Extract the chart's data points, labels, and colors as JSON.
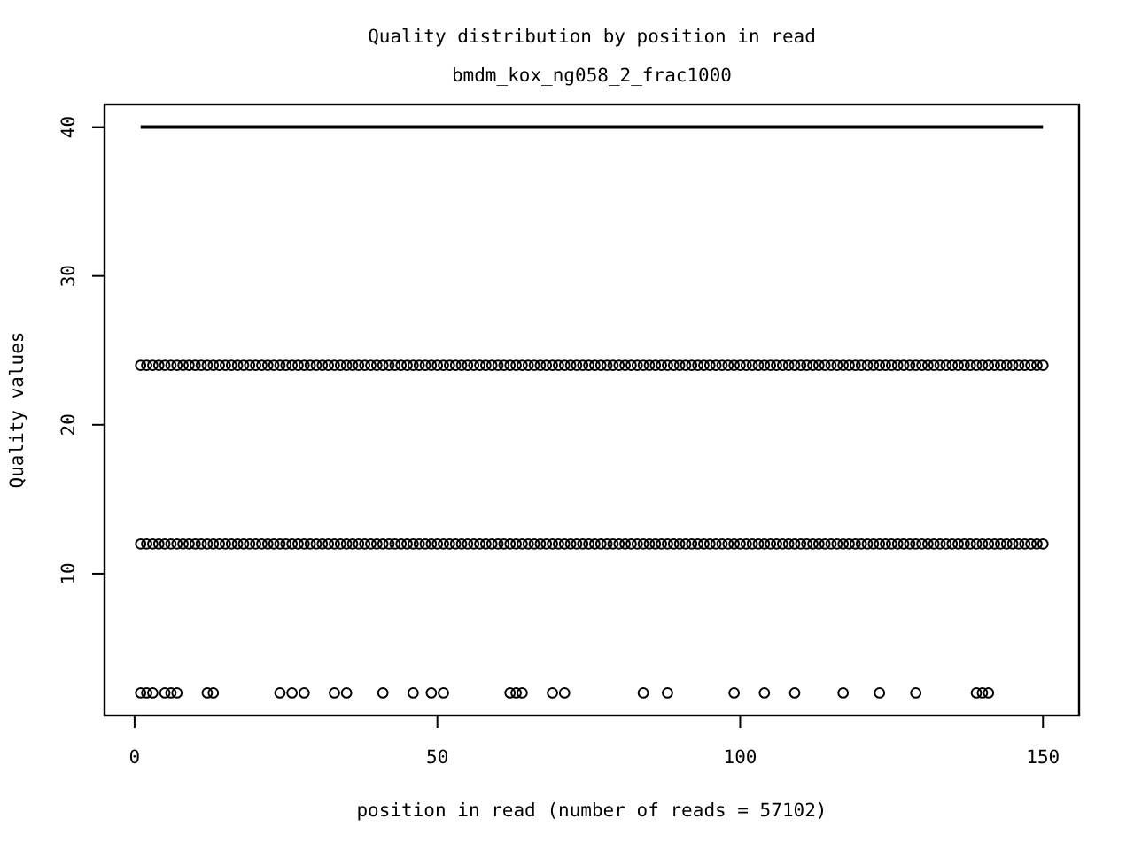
{
  "chart_data": {
    "type": "scatter",
    "title": "Quality distribution by position in read",
    "subtitle": "bmdm_kox_ng058_2_frac1000",
    "xlabel": "position in read (number of reads = 57102)",
    "ylabel": "Quality values",
    "xlim": [
      -4.96,
      155.96
    ],
    "xticks": [
      0,
      50,
      100,
      150
    ],
    "ylim": [
      0.48,
      41.52
    ],
    "yticks": [
      10,
      20,
      30,
      40
    ],
    "marker": "circle",
    "series": [
      {
        "type": "line",
        "marker": "none",
        "color": "#000000",
        "x": [
          1,
          150
        ],
        "values": [
          40,
          40
        ]
      },
      {
        "color": "#000000",
        "x": [
          1,
          2,
          3,
          4,
          5,
          6,
          7,
          8,
          9,
          10,
          11,
          12,
          13,
          14,
          15,
          16,
          17,
          18,
          19,
          20,
          21,
          22,
          23,
          24,
          25,
          26,
          27,
          28,
          29,
          30,
          31,
          32,
          33,
          34,
          35,
          36,
          37,
          38,
          39,
          40,
          41,
          42,
          43,
          44,
          45,
          46,
          47,
          48,
          49,
          50,
          51,
          52,
          53,
          54,
          55,
          56,
          57,
          58,
          59,
          60,
          61,
          62,
          63,
          64,
          65,
          66,
          67,
          68,
          69,
          70,
          71,
          72,
          73,
          74,
          75,
          76,
          77,
          78,
          79,
          80,
          81,
          82,
          83,
          84,
          85,
          86,
          87,
          88,
          89,
          90,
          91,
          92,
          93,
          94,
          95,
          96,
          97,
          98,
          99,
          100,
          101,
          102,
          103,
          104,
          105,
          106,
          107,
          108,
          109,
          110,
          111,
          112,
          113,
          114,
          115,
          116,
          117,
          118,
          119,
          120,
          121,
          122,
          123,
          124,
          125,
          126,
          127,
          128,
          129,
          130,
          131,
          132,
          133,
          134,
          135,
          136,
          137,
          138,
          139,
          140,
          141,
          142,
          143,
          144,
          145,
          146,
          147,
          148,
          149,
          150
        ],
        "values": [
          24,
          24,
          24,
          24,
          24,
          24,
          24,
          24,
          24,
          24,
          24,
          24,
          24,
          24,
          24,
          24,
          24,
          24,
          24,
          24,
          24,
          24,
          24,
          24,
          24,
          24,
          24,
          24,
          24,
          24,
          24,
          24,
          24,
          24,
          24,
          24,
          24,
          24,
          24,
          24,
          24,
          24,
          24,
          24,
          24,
          24,
          24,
          24,
          24,
          24,
          24,
          24,
          24,
          24,
          24,
          24,
          24,
          24,
          24,
          24,
          24,
          24,
          24,
          24,
          24,
          24,
          24,
          24,
          24,
          24,
          24,
          24,
          24,
          24,
          24,
          24,
          24,
          24,
          24,
          24,
          24,
          24,
          24,
          24,
          24,
          24,
          24,
          24,
          24,
          24,
          24,
          24,
          24,
          24,
          24,
          24,
          24,
          24,
          24,
          24,
          24,
          24,
          24,
          24,
          24,
          24,
          24,
          24,
          24,
          24,
          24,
          24,
          24,
          24,
          24,
          24,
          24,
          24,
          24,
          24,
          24,
          24,
          24,
          24,
          24,
          24,
          24,
          24,
          24,
          24,
          24,
          24,
          24,
          24,
          24,
          24,
          24,
          24,
          24,
          24,
          24,
          24,
          24,
          24,
          24,
          24,
          24,
          24,
          24,
          24
        ]
      },
      {
        "color": "#000000",
        "x": [
          1,
          2,
          3,
          4,
          5,
          6,
          7,
          8,
          9,
          10,
          11,
          12,
          13,
          14,
          15,
          16,
          17,
          18,
          19,
          20,
          21,
          22,
          23,
          24,
          25,
          26,
          27,
          28,
          29,
          30,
          31,
          32,
          33,
          34,
          35,
          36,
          37,
          38,
          39,
          40,
          41,
          42,
          43,
          44,
          45,
          46,
          47,
          48,
          49,
          50,
          51,
          52,
          53,
          54,
          55,
          56,
          57,
          58,
          59,
          60,
          61,
          62,
          63,
          64,
          65,
          66,
          67,
          68,
          69,
          70,
          71,
          72,
          73,
          74,
          75,
          76,
          77,
          78,
          79,
          80,
          81,
          82,
          83,
          84,
          85,
          86,
          87,
          88,
          89,
          90,
          91,
          92,
          93,
          94,
          95,
          96,
          97,
          98,
          99,
          100,
          101,
          102,
          103,
          104,
          105,
          106,
          107,
          108,
          109,
          110,
          111,
          112,
          113,
          114,
          115,
          116,
          117,
          118,
          119,
          120,
          121,
          122,
          123,
          124,
          125,
          126,
          127,
          128,
          129,
          130,
          131,
          132,
          133,
          134,
          135,
          136,
          137,
          138,
          139,
          140,
          141,
          142,
          143,
          144,
          145,
          146,
          147,
          148,
          149,
          150
        ],
        "values": [
          12,
          12,
          12,
          12,
          12,
          12,
          12,
          12,
          12,
          12,
          12,
          12,
          12,
          12,
          12,
          12,
          12,
          12,
          12,
          12,
          12,
          12,
          12,
          12,
          12,
          12,
          12,
          12,
          12,
          12,
          12,
          12,
          12,
          12,
          12,
          12,
          12,
          12,
          12,
          12,
          12,
          12,
          12,
          12,
          12,
          12,
          12,
          12,
          12,
          12,
          12,
          12,
          12,
          12,
          12,
          12,
          12,
          12,
          12,
          12,
          12,
          12,
          12,
          12,
          12,
          12,
          12,
          12,
          12,
          12,
          12,
          12,
          12,
          12,
          12,
          12,
          12,
          12,
          12,
          12,
          12,
          12,
          12,
          12,
          12,
          12,
          12,
          12,
          12,
          12,
          12,
          12,
          12,
          12,
          12,
          12,
          12,
          12,
          12,
          12,
          12,
          12,
          12,
          12,
          12,
          12,
          12,
          12,
          12,
          12,
          12,
          12,
          12,
          12,
          12,
          12,
          12,
          12,
          12,
          12,
          12,
          12,
          12,
          12,
          12,
          12,
          12,
          12,
          12,
          12,
          12,
          12,
          12,
          12,
          12,
          12,
          12,
          12,
          12,
          12,
          12,
          12,
          12,
          12,
          12,
          12,
          12,
          12,
          12,
          12
        ]
      },
      {
        "color": "#000000",
        "x": [
          1,
          2,
          3,
          5,
          6,
          7,
          12,
          13,
          24,
          26,
          28,
          33,
          35,
          41,
          46,
          49,
          51,
          62,
          63,
          64,
          69,
          71,
          84,
          88,
          99,
          104,
          109,
          117,
          123,
          129,
          139,
          140,
          141
        ],
        "values": [
          2,
          2,
          2,
          2,
          2,
          2,
          2,
          2,
          2,
          2,
          2,
          2,
          2,
          2,
          2,
          2,
          2,
          2,
          2,
          2,
          2,
          2,
          2,
          2,
          2,
          2,
          2,
          2,
          2,
          2,
          2,
          2,
          2
        ]
      }
    ]
  }
}
